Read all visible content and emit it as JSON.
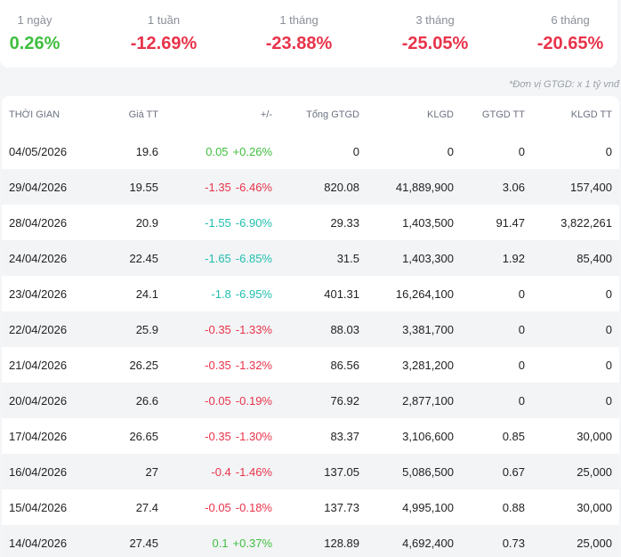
{
  "colors": {
    "up": "#3fbf3f",
    "down": "#e8334a",
    "floor": "#1fbfae"
  },
  "performance": [
    {
      "label": "1 ngày",
      "value": "0.26%",
      "trend": "up"
    },
    {
      "label": "1 tuần",
      "value": "-12.69%",
      "trend": "down"
    },
    {
      "label": "1 tháng",
      "value": "-23.88%",
      "trend": "down"
    },
    {
      "label": "3 tháng",
      "value": "-25.05%",
      "trend": "down"
    },
    {
      "label": "6 tháng",
      "value": "-20.65%",
      "trend": "down"
    }
  ],
  "unit_note": "*Đơn vị GTGD: x 1 tỷ vnđ",
  "table": {
    "headers": {
      "date": "THỜI GIAN",
      "price": "Giá TT",
      "change": "+/-",
      "total_value": "Tổng GTGD",
      "volume": "KLGD",
      "deal_value": "GTGD TT",
      "deal_volume": "KLGD TT"
    },
    "rows": [
      {
        "date": "04/05/2026",
        "price": "19.6",
        "change": "0.05",
        "change_pct": "+0.26%",
        "trend": "up",
        "total_value": "0",
        "volume": "0",
        "deal_value": "0",
        "deal_volume": "0"
      },
      {
        "date": "29/04/2026",
        "price": "19.55",
        "change": "-1.35",
        "change_pct": "-6.46%",
        "trend": "down",
        "total_value": "820.08",
        "volume": "41,889,900",
        "deal_value": "3.06",
        "deal_volume": "157,400"
      },
      {
        "date": "28/04/2026",
        "price": "20.9",
        "change": "-1.55",
        "change_pct": "-6.90%",
        "trend": "floor",
        "total_value": "29.33",
        "volume": "1,403,500",
        "deal_value": "91.47",
        "deal_volume": "3,822,261"
      },
      {
        "date": "24/04/2026",
        "price": "22.45",
        "change": "-1.65",
        "change_pct": "-6.85%",
        "trend": "floor",
        "total_value": "31.5",
        "volume": "1,403,300",
        "deal_value": "1.92",
        "deal_volume": "85,400"
      },
      {
        "date": "23/04/2026",
        "price": "24.1",
        "change": "-1.8",
        "change_pct": "-6.95%",
        "trend": "floor",
        "total_value": "401.31",
        "volume": "16,264,100",
        "deal_value": "0",
        "deal_volume": "0"
      },
      {
        "date": "22/04/2026",
        "price": "25.9",
        "change": "-0.35",
        "change_pct": "-1.33%",
        "trend": "down",
        "total_value": "88.03",
        "volume": "3,381,700",
        "deal_value": "0",
        "deal_volume": "0"
      },
      {
        "date": "21/04/2026",
        "price": "26.25",
        "change": "-0.35",
        "change_pct": "-1.32%",
        "trend": "down",
        "total_value": "86.56",
        "volume": "3,281,200",
        "deal_value": "0",
        "deal_volume": "0"
      },
      {
        "date": "20/04/2026",
        "price": "26.6",
        "change": "-0.05",
        "change_pct": "-0.19%",
        "trend": "down",
        "total_value": "76.92",
        "volume": "2,877,100",
        "deal_value": "0",
        "deal_volume": "0"
      },
      {
        "date": "17/04/2026",
        "price": "26.65",
        "change": "-0.35",
        "change_pct": "-1.30%",
        "trend": "down",
        "total_value": "83.37",
        "volume": "3,106,600",
        "deal_value": "0.85",
        "deal_volume": "30,000"
      },
      {
        "date": "16/04/2026",
        "price": "27",
        "change": "-0.4",
        "change_pct": "-1.46%",
        "trend": "down",
        "total_value": "137.05",
        "volume": "5,086,500",
        "deal_value": "0.67",
        "deal_volume": "25,000"
      },
      {
        "date": "15/04/2026",
        "price": "27.4",
        "change": "-0.05",
        "change_pct": "-0.18%",
        "trend": "down",
        "total_value": "137.73",
        "volume": "4,995,100",
        "deal_value": "0.88",
        "deal_volume": "30,000"
      },
      {
        "date": "14/04/2026",
        "price": "27.45",
        "change": "0.1",
        "change_pct": "+0.37%",
        "trend": "up",
        "total_value": "128.89",
        "volume": "4,692,400",
        "deal_value": "0.73",
        "deal_volume": "25,000"
      }
    ]
  }
}
